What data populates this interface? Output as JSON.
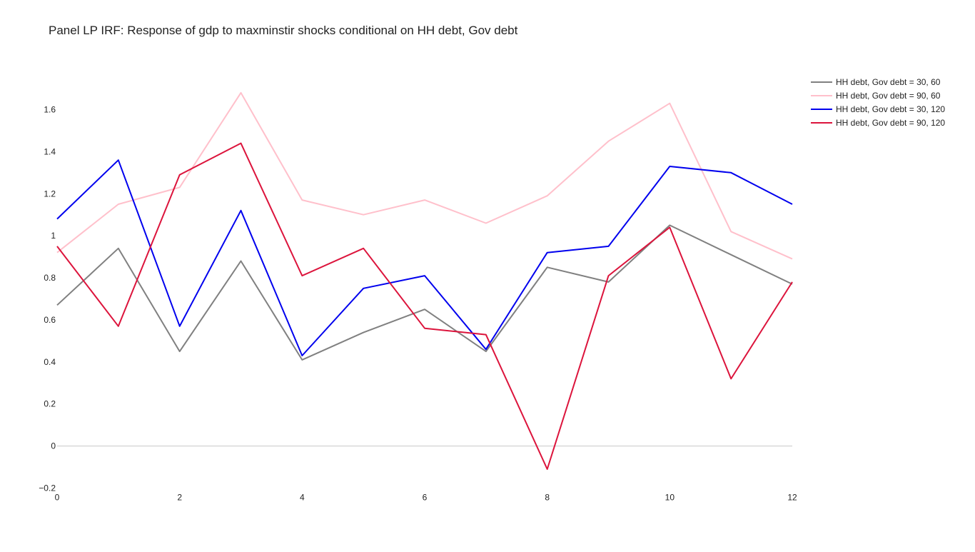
{
  "chart_data": {
    "type": "line",
    "title": "Panel LP IRF: Response of gdp to maxminstir shocks conditional on HH debt, Gov debt",
    "xlabel": "",
    "ylabel": "",
    "xlim": [
      0,
      12
    ],
    "ylim": [
      -0.2,
      1.72
    ],
    "grid": false,
    "legend_position": "top-right",
    "x": [
      0,
      1,
      2,
      3,
      4,
      5,
      6,
      7,
      8,
      9,
      10,
      11,
      12
    ],
    "x_ticks": [
      0,
      2,
      4,
      6,
      8,
      10,
      12
    ],
    "x_tick_labels": [
      "0",
      "2",
      "4",
      "6",
      "8",
      "10",
      "12"
    ],
    "y_ticks": [
      -0.2,
      0,
      0.2,
      0.4,
      0.6,
      0.8,
      1,
      1.2,
      1.4,
      1.6
    ],
    "y_tick_labels": [
      "−0.2",
      "0",
      "0.2",
      "0.4",
      "0.6",
      "0.8",
      "1",
      "1.2",
      "1.4",
      "1.6"
    ],
    "zero_line": true,
    "series": [
      {
        "name": "HH debt, Gov debt = 30, 60",
        "color": "#808080",
        "values": [
          0.67,
          0.94,
          0.45,
          0.88,
          0.41,
          0.54,
          0.65,
          0.45,
          0.85,
          0.78,
          1.05,
          0.91,
          0.77
        ]
      },
      {
        "name": "HH debt, Gov debt = 90, 60",
        "color": "#ffc0cb",
        "values": [
          0.92,
          1.15,
          1.23,
          1.68,
          1.17,
          1.1,
          1.17,
          1.06,
          1.19,
          1.45,
          1.63,
          1.02,
          0.89
        ]
      },
      {
        "name": "HH debt, Gov debt = 30, 120",
        "color": "#0000ee",
        "values": [
          1.08,
          1.36,
          0.57,
          1.12,
          0.43,
          0.75,
          0.81,
          0.46,
          0.92,
          0.95,
          1.33,
          1.3,
          1.15
        ]
      },
      {
        "name": "HH debt, Gov debt = 90, 120",
        "color": "#dc143c",
        "values": [
          0.95,
          0.57,
          1.29,
          1.44,
          0.81,
          0.94,
          0.56,
          0.53,
          -0.11,
          0.81,
          1.04,
          0.32,
          0.78
        ]
      }
    ]
  }
}
